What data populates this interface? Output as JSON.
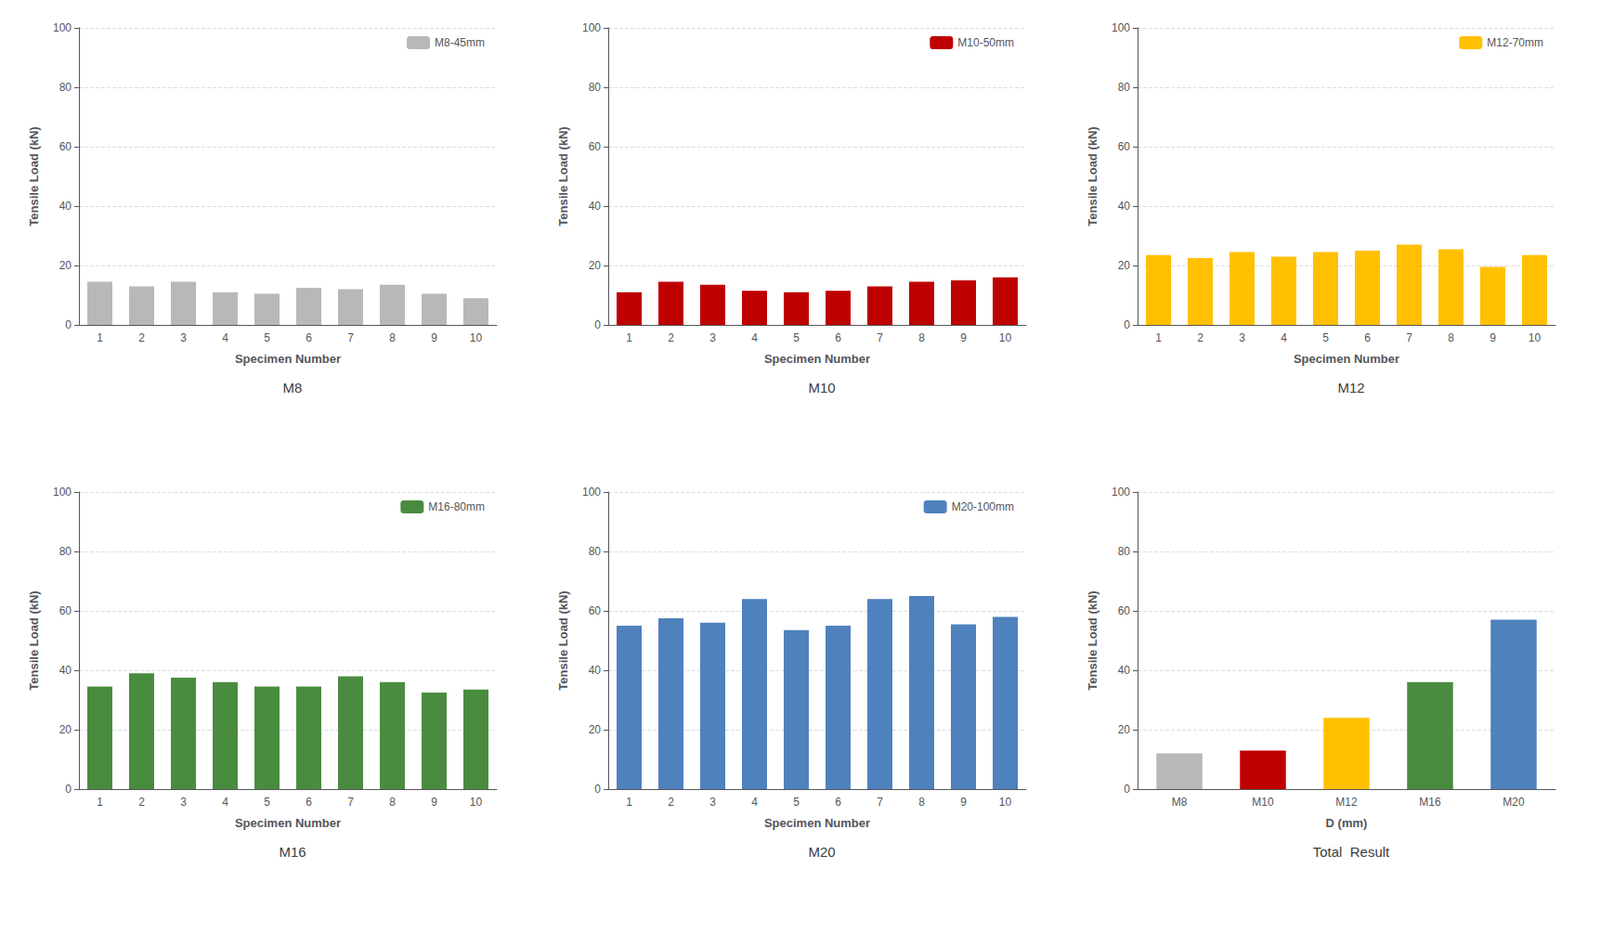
{
  "chart_data": [
    {
      "type": "bar",
      "subtitle": "M8",
      "categories": [
        "1",
        "2",
        "3",
        "4",
        "5",
        "6",
        "7",
        "8",
        "9",
        "10"
      ],
      "series": [
        {
          "name": "M8-45mm",
          "color": "#b8b8b8",
          "values": [
            14.5,
            13.0,
            14.5,
            11.0,
            10.5,
            12.5,
            12.0,
            13.5,
            10.5,
            9.0
          ]
        }
      ],
      "xlabel": "Specimen Number",
      "ylabel": "Tensile Load (kN)",
      "ylim": [
        0,
        100
      ],
      "yticks": [
        0,
        20,
        40,
        60,
        80,
        100
      ],
      "grid": true,
      "legend": "upper right"
    },
    {
      "type": "bar",
      "subtitle": "M10",
      "categories": [
        "1",
        "2",
        "3",
        "4",
        "5",
        "6",
        "7",
        "8",
        "9",
        "10"
      ],
      "series": [
        {
          "name": "M10-50mm",
          "color": "#be0000",
          "values": [
            11.0,
            14.5,
            13.5,
            11.5,
            11.0,
            11.5,
            13.0,
            14.5,
            15.0,
            16.0
          ]
        }
      ],
      "xlabel": "Specimen Number",
      "ylabel": "Tensile Load (kN)",
      "ylim": [
        0,
        100
      ],
      "yticks": [
        0,
        20,
        40,
        60,
        80,
        100
      ],
      "grid": true,
      "legend": "upper right"
    },
    {
      "type": "bar",
      "subtitle": "M12",
      "categories": [
        "1",
        "2",
        "3",
        "4",
        "5",
        "6",
        "7",
        "8",
        "9",
        "10"
      ],
      "series": [
        {
          "name": "M12-70mm",
          "color": "#ffc000",
          "values": [
            23.5,
            22.5,
            24.5,
            23.0,
            24.5,
            25.0,
            27.0,
            25.5,
            19.5,
            23.5
          ]
        }
      ],
      "xlabel": "Specimen Number",
      "ylabel": "Tensile Load (kN)",
      "ylim": [
        0,
        100
      ],
      "yticks": [
        0,
        20,
        40,
        60,
        80,
        100
      ],
      "grid": true,
      "legend": "upper right"
    },
    {
      "type": "bar",
      "subtitle": "M16",
      "categories": [
        "1",
        "2",
        "3",
        "4",
        "5",
        "6",
        "7",
        "8",
        "9",
        "10"
      ],
      "series": [
        {
          "name": "M16-80mm",
          "color": "#4a8c3f",
          "values": [
            34.5,
            39.0,
            37.5,
            36.0,
            34.5,
            34.5,
            38.0,
            36.0,
            32.5,
            33.5
          ]
        }
      ],
      "xlabel": "Specimen Number",
      "ylabel": "Tensile Load (kN)",
      "ylim": [
        0,
        100
      ],
      "yticks": [
        0,
        20,
        40,
        60,
        80,
        100
      ],
      "grid": true,
      "legend": "upper right"
    },
    {
      "type": "bar",
      "subtitle": "M20",
      "categories": [
        "1",
        "2",
        "3",
        "4",
        "5",
        "6",
        "7",
        "8",
        "9",
        "10"
      ],
      "series": [
        {
          "name": "M20-100mm",
          "color": "#4f81bd",
          "values": [
            55.0,
            57.5,
            56.0,
            64.0,
            53.5,
            55.0,
            64.0,
            65.0,
            55.5,
            58.0
          ]
        }
      ],
      "xlabel": "Specimen Number",
      "ylabel": "Tensile Load (kN)",
      "ylim": [
        0,
        100
      ],
      "yticks": [
        0,
        20,
        40,
        60,
        80,
        100
      ],
      "grid": true,
      "legend": "upper right"
    },
    {
      "type": "bar",
      "subtitle": "Total  Result",
      "categories": [
        "M8",
        "M10",
        "M12",
        "M16",
        "M20"
      ],
      "values": [
        12.0,
        13.0,
        24.0,
        36.0,
        57.0
      ],
      "colors": [
        "#b8b8b8",
        "#be0000",
        "#ffc000",
        "#4a8c3f",
        "#4f81bd"
      ],
      "xlabel": "D (mm)",
      "ylabel": "Tensile Load (kN)",
      "ylim": [
        0,
        100
      ],
      "yticks": [
        0,
        20,
        40,
        60,
        80,
        100
      ],
      "grid": true
    }
  ]
}
